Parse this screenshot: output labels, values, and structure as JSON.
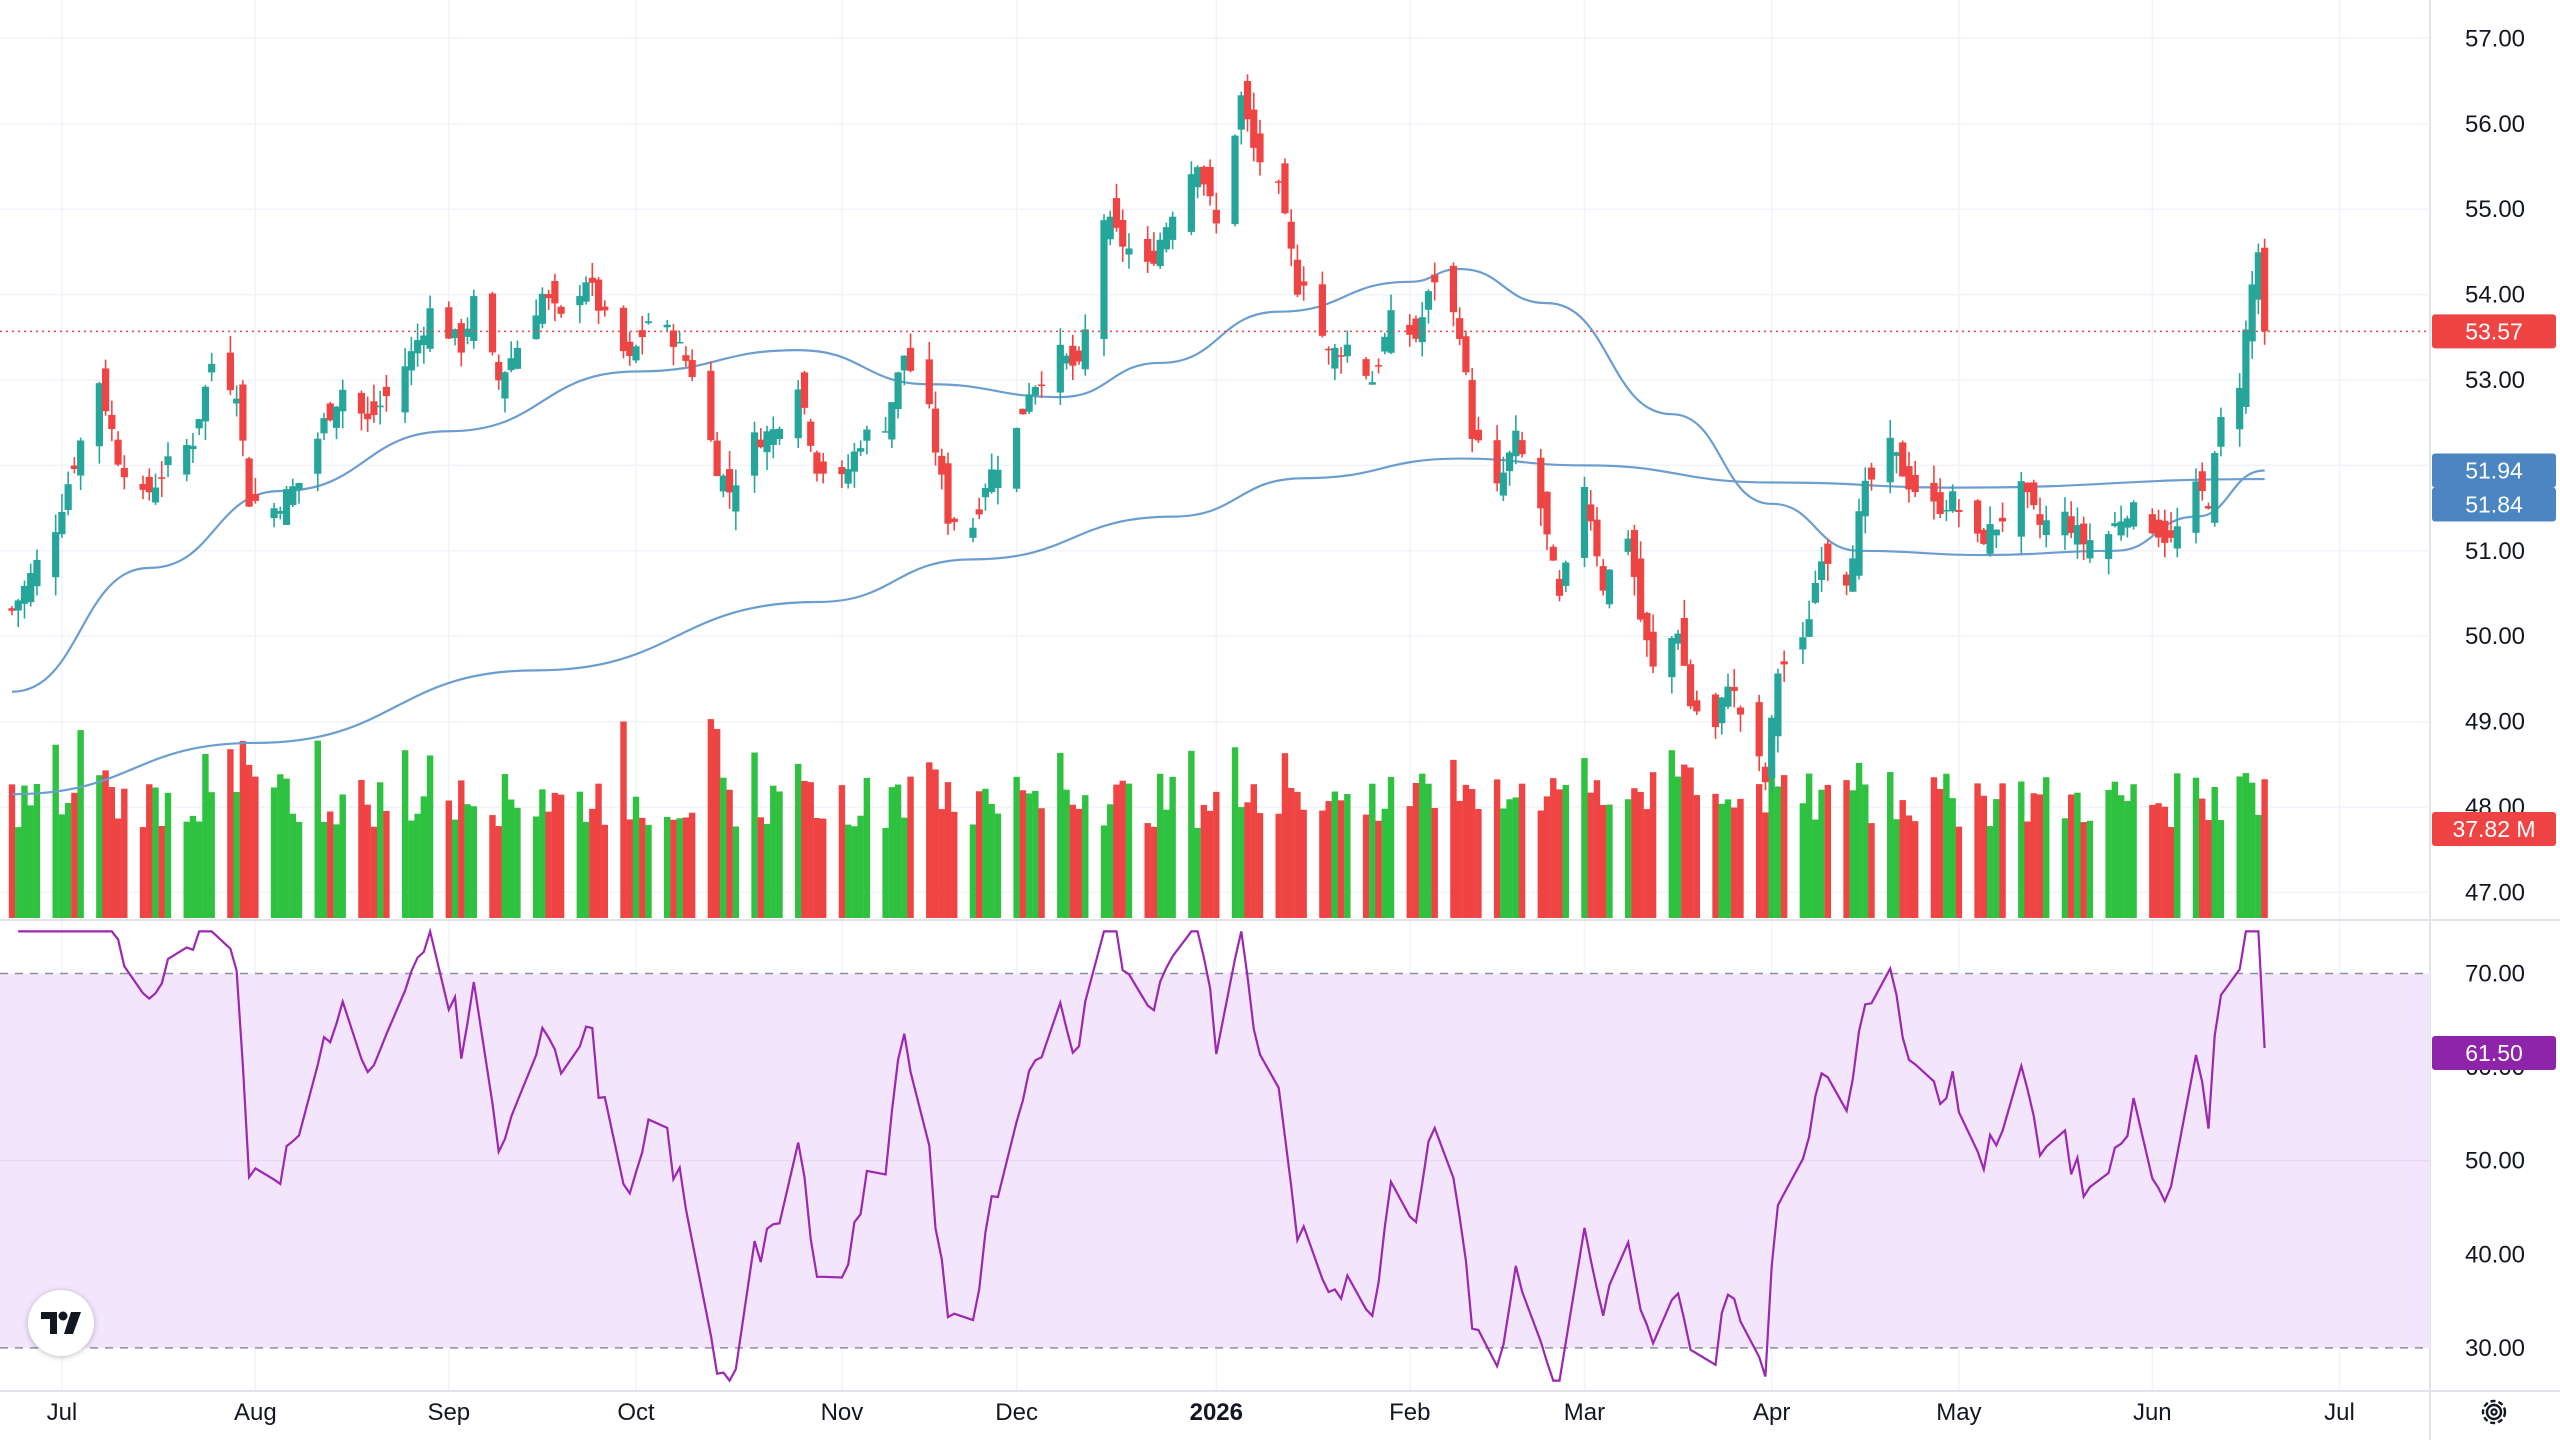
{
  "chart_data": {
    "type": "candlestick",
    "price_panel": {
      "y_range": [
        46.7,
        57.45
      ],
      "y_ticks": [
        "57.00",
        "56.00",
        "55.00",
        "54.00",
        "53.00",
        "52.00",
        "51.00",
        "50.00",
        "49.00",
        "48.00",
        "47.00"
      ],
      "last_price": 53.57,
      "last_price_label": "53.57",
      "ma_fast_label": "51.94",
      "ma_slow_label": "51.84",
      "volume_label": "37.82 M",
      "grid": true
    },
    "x_axis": {
      "start": "2025-06-23",
      "end": "2026-07-03",
      "ticks": [
        {
          "date": "2025-07-01",
          "label": "Jul",
          "bold": false
        },
        {
          "date": "2025-08-01",
          "label": "Aug",
          "bold": false
        },
        {
          "date": "2025-09-01",
          "label": "Sep",
          "bold": false
        },
        {
          "date": "2025-10-01",
          "label": "Oct",
          "bold": false
        },
        {
          "date": "2025-11-03",
          "label": "Nov",
          "bold": false
        },
        {
          "date": "2025-12-01",
          "label": "Dec",
          "bold": false
        },
        {
          "date": "2026-01-02",
          "label": "2026",
          "bold": true
        },
        {
          "date": "2026-02-02",
          "label": "Feb",
          "bold": false
        },
        {
          "date": "2026-03-02",
          "label": "Mar",
          "bold": false
        },
        {
          "date": "2026-04-01",
          "label": "Apr",
          "bold": false
        },
        {
          "date": "2026-05-01",
          "label": "May",
          "bold": false
        },
        {
          "date": "2026-06-01",
          "label": "Jun",
          "bold": false
        },
        {
          "date": "2026-07-01",
          "label": "Jul",
          "bold": false
        }
      ]
    },
    "close_anchors": [
      [
        "2025-06-23",
        50.3
      ],
      [
        "2025-06-26",
        50.7
      ],
      [
        "2025-06-30",
        51.3
      ],
      [
        "2025-07-02",
        51.8
      ],
      [
        "2025-07-07",
        53.0
      ],
      [
        "2025-07-10",
        52.1
      ],
      [
        "2025-07-14",
        51.6
      ],
      [
        "2025-07-18",
        52.0
      ],
      [
        "2025-07-22",
        52.3
      ],
      [
        "2025-07-25",
        53.2
      ],
      [
        "2025-07-29",
        52.9
      ],
      [
        "2025-07-31",
        51.6
      ],
      [
        "2025-08-04",
        51.5
      ],
      [
        "2025-08-08",
        51.8
      ],
      [
        "2025-08-12",
        52.5
      ],
      [
        "2025-08-15",
        52.9
      ],
      [
        "2025-08-19",
        52.5
      ],
      [
        "2025-08-22",
        52.8
      ],
      [
        "2025-08-26",
        53.3
      ],
      [
        "2025-08-29",
        53.8
      ],
      [
        "2025-09-03",
        53.4
      ],
      [
        "2025-09-05",
        53.9
      ],
      [
        "2025-09-09",
        53.0
      ],
      [
        "2025-09-12",
        53.4
      ],
      [
        "2025-09-16",
        54.0
      ],
      [
        "2025-09-19",
        53.7
      ],
      [
        "2025-09-23",
        54.2
      ],
      [
        "2025-09-26",
        53.7
      ],
      [
        "2025-09-30",
        53.2
      ],
      [
        "2025-10-03",
        53.7
      ],
      [
        "2025-10-07",
        53.5
      ],
      [
        "2025-10-10",
        53.1
      ],
      [
        "2025-10-14",
        52.0
      ],
      [
        "2025-10-16",
        51.7
      ],
      [
        "2025-10-20",
        52.3
      ],
      [
        "2025-10-23",
        52.4
      ],
      [
        "2025-10-27",
        53.0
      ],
      [
        "2025-10-30",
        52.0
      ],
      [
        "2025-11-03",
        51.8
      ],
      [
        "2025-11-06",
        52.3
      ],
      [
        "2025-11-10",
        52.5
      ],
      [
        "2025-11-13",
        53.3
      ],
      [
        "2025-11-17",
        52.6
      ],
      [
        "2025-11-20",
        51.4
      ],
      [
        "2025-11-24",
        51.3
      ],
      [
        "2025-11-26",
        51.8
      ],
      [
        "2025-12-01",
        52.4
      ],
      [
        "2025-12-03",
        52.9
      ],
      [
        "2025-12-08",
        53.3
      ],
      [
        "2025-12-11",
        53.1
      ],
      [
        "2025-12-15",
        54.9
      ],
      [
        "2025-12-18",
        54.6
      ],
      [
        "2025-12-22",
        54.3
      ],
      [
        "2025-12-26",
        55.0
      ],
      [
        "2025-12-30",
        55.6
      ],
      [
        "2026-01-02",
        54.8
      ],
      [
        "2026-01-06",
        56.3
      ],
      [
        "2026-01-08",
        55.7
      ],
      [
        "2026-01-12",
        55.2
      ],
      [
        "2026-01-15",
        54.1
      ],
      [
        "2026-01-16",
        54.2
      ],
      [
        "2026-01-20",
        53.3
      ],
      [
        "2026-01-23",
        53.4
      ],
      [
        "2026-01-27",
        53.0
      ],
      [
        "2026-01-30",
        53.7
      ],
      [
        "2026-02-03",
        53.5
      ],
      [
        "2026-02-06",
        54.2
      ],
      [
        "2026-02-10",
        53.6
      ],
      [
        "2026-02-12",
        52.4
      ],
      [
        "2026-02-16",
        51.7
      ],
      [
        "2026-02-19",
        52.3
      ],
      [
        "2026-02-23",
        51.5
      ],
      [
        "2026-02-26",
        50.4
      ],
      [
        "2026-03-02",
        51.8
      ],
      [
        "2026-03-05",
        50.6
      ],
      [
        "2026-03-09",
        51.2
      ],
      [
        "2026-03-11",
        50.2
      ],
      [
        "2026-03-13",
        49.6
      ],
      [
        "2026-03-17",
        50.1
      ],
      [
        "2026-03-19",
        49.2
      ],
      [
        "2026-03-23",
        48.9
      ],
      [
        "2026-03-25",
        49.5
      ],
      [
        "2026-03-27",
        49.1
      ],
      [
        "2026-03-31",
        48.3
      ],
      [
        "2026-04-02",
        49.6
      ],
      [
        "2026-04-06",
        49.9
      ],
      [
        "2026-04-09",
        51.0
      ],
      [
        "2026-04-13",
        50.7
      ],
      [
        "2026-04-16",
        51.7
      ],
      [
        "2026-04-20",
        52.2
      ],
      [
        "2026-04-23",
        51.8
      ],
      [
        "2026-04-27",
        51.5
      ],
      [
        "2026-04-30",
        51.6
      ],
      [
        "2026-05-04",
        51.1
      ],
      [
        "2026-05-07",
        51.3
      ],
      [
        "2026-05-11",
        51.7
      ],
      [
        "2026-05-14",
        51.3
      ],
      [
        "2026-05-18",
        51.4
      ],
      [
        "2026-05-21",
        51.1
      ],
      [
        "2026-05-25",
        51.2
      ],
      [
        "2026-05-28",
        51.5
      ],
      [
        "2026-06-01",
        51.3
      ],
      [
        "2026-06-04",
        51.1
      ],
      [
        "2026-06-08",
        51.7
      ],
      [
        "2026-06-10",
        51.6
      ],
      [
        "2026-06-12",
        52.5
      ],
      [
        "2026-06-15",
        53.0
      ],
      [
        "2026-06-17",
        54.1
      ],
      [
        "2026-06-18",
        54.5
      ],
      [
        "2026-06-19",
        53.57
      ]
    ],
    "ma_fast": [
      [
        "2025-06-23",
        49.35
      ],
      [
        "2025-07-15",
        50.8
      ],
      [
        "2025-08-05",
        51.7
      ],
      [
        "2025-09-01",
        52.4
      ],
      [
        "2025-10-01",
        53.1
      ],
      [
        "2025-10-27",
        53.35
      ],
      [
        "2025-11-17",
        52.95
      ],
      [
        "2025-12-08",
        52.8
      ],
      [
        "2025-12-24",
        53.2
      ],
      [
        "2026-01-12",
        53.8
      ],
      [
        "2026-02-02",
        54.15
      ],
      [
        "2026-02-10",
        54.3
      ],
      [
        "2026-02-24",
        53.9
      ],
      [
        "2026-03-16",
        52.6
      ],
      [
        "2026-04-01",
        51.55
      ],
      [
        "2026-04-15",
        51.0
      ],
      [
        "2026-05-05",
        50.95
      ],
      [
        "2026-05-26",
        51.0
      ],
      [
        "2026-06-08",
        51.4
      ],
      [
        "2026-06-19",
        51.94
      ]
    ],
    "ma_slow": [
      [
        "2025-06-23",
        48.15
      ],
      [
        "2025-08-01",
        48.75
      ],
      [
        "2025-09-15",
        49.6
      ],
      [
        "2025-10-30",
        50.4
      ],
      [
        "2025-11-24",
        50.9
      ],
      [
        "2025-12-26",
        51.4
      ],
      [
        "2026-01-16",
        51.85
      ],
      [
        "2026-02-10",
        52.08
      ],
      [
        "2026-03-02",
        52.0
      ],
      [
        "2026-04-01",
        51.8
      ],
      [
        "2026-05-01",
        51.74
      ],
      [
        "2026-06-19",
        51.84
      ]
    ],
    "rsi_panel": {
      "range": [
        25.5,
        75.5
      ],
      "ticks": [
        "70.00",
        "60.00",
        "50.00",
        "40.00",
        "30.00"
      ],
      "upper": 70,
      "lower": 30,
      "last": 61.5,
      "last_label": "61.50"
    },
    "colors": {
      "up": "#26a69a",
      "up_volume": "#2fc140",
      "down": "#ef4444",
      "ma": "#6b9ecf",
      "ma_tag": "#4b86c3",
      "rsi_line": "#9c27b0",
      "rsi_band": "#f3e5fb",
      "rsi_tag": "#8e24aa",
      "price_tag": "#ef4444"
    }
  }
}
